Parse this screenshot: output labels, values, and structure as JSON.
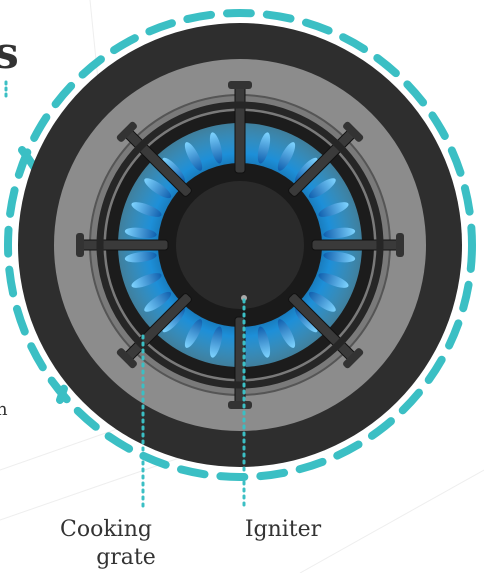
{
  "labels": {
    "heading_fragment": "s",
    "side_fragment": "n",
    "cooking_grate": [
      "Cooking",
      "grate"
    ],
    "igniter": "Igniter"
  }
}
